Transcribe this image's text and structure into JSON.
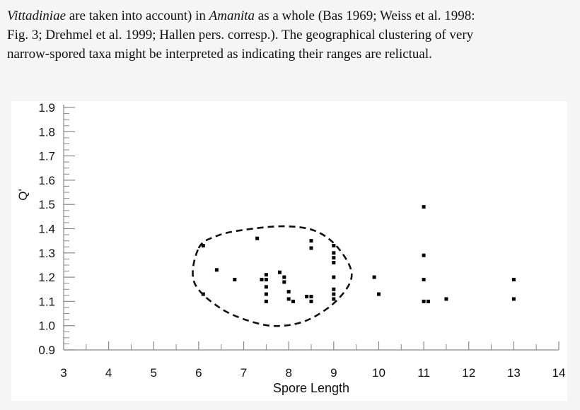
{
  "paragraph": {
    "line0": "",
    "line1_italic": "Vittadiniae",
    "line1_rest": " are taken into account) in ",
    "line1_italic2": "Amanita",
    "line1_tail": " as a whole (Bas 1969; Weiss et al. 1998:",
    "line2": "Fig. 3; Drehmel et al. 1999; Hallen pers. corresp.).  The geographical clustering of very",
    "line3": "narrow-spored taxa might be interpreted as indicating their ranges are relictual."
  },
  "chart_data": {
    "type": "scatter",
    "title": "",
    "xlabel": "Spore Length",
    "ylabel": "Q'",
    "xlim": [
      3,
      14
    ],
    "ylim": [
      0.9,
      1.9
    ],
    "xticks": [
      "3",
      "4",
      "5",
      "6",
      "7",
      "8",
      "9",
      "10",
      "11",
      "12",
      "13",
      "14"
    ],
    "yticks": [
      "0.9",
      "1.0",
      "1.1",
      "1.2",
      "1.3",
      "1.4",
      "1.5",
      "1.6",
      "1.7",
      "1.8",
      "1.9"
    ],
    "grid": false,
    "series": [
      {
        "points": [
          [
            6.1,
            1.33
          ],
          [
            6.1,
            1.13
          ],
          [
            6.4,
            1.23
          ],
          [
            6.8,
            1.19
          ],
          [
            7.3,
            1.36
          ],
          [
            7.4,
            1.19
          ],
          [
            7.5,
            1.21
          ],
          [
            7.5,
            1.19
          ],
          [
            7.5,
            1.16
          ],
          [
            7.5,
            1.13
          ],
          [
            7.5,
            1.1
          ],
          [
            7.8,
            1.22
          ],
          [
            7.9,
            1.2
          ],
          [
            7.9,
            1.18
          ],
          [
            8.0,
            1.14
          ],
          [
            8.0,
            1.11
          ],
          [
            8.1,
            1.1
          ],
          [
            8.4,
            1.12
          ],
          [
            8.5,
            1.12
          ],
          [
            8.5,
            1.1
          ],
          [
            8.5,
            1.35
          ],
          [
            8.5,
            1.32
          ],
          [
            9.0,
            1.33
          ],
          [
            9.0,
            1.3
          ],
          [
            9.0,
            1.28
          ],
          [
            9.0,
            1.26
          ],
          [
            9.0,
            1.2
          ],
          [
            9.0,
            1.15
          ],
          [
            9.0,
            1.13
          ],
          [
            9.0,
            1.11
          ],
          [
            9.9,
            1.2
          ],
          [
            10.0,
            1.13
          ],
          [
            11.0,
            1.49
          ],
          [
            11.0,
            1.29
          ],
          [
            11.0,
            1.19
          ],
          [
            11.0,
            1.1
          ],
          [
            11.1,
            1.1
          ],
          [
            11.5,
            1.11
          ],
          [
            13.0,
            1.19
          ],
          [
            13.0,
            1.11
          ]
        ]
      }
    ],
    "annotation": {
      "shape": "dashed-ellipse"
    }
  }
}
